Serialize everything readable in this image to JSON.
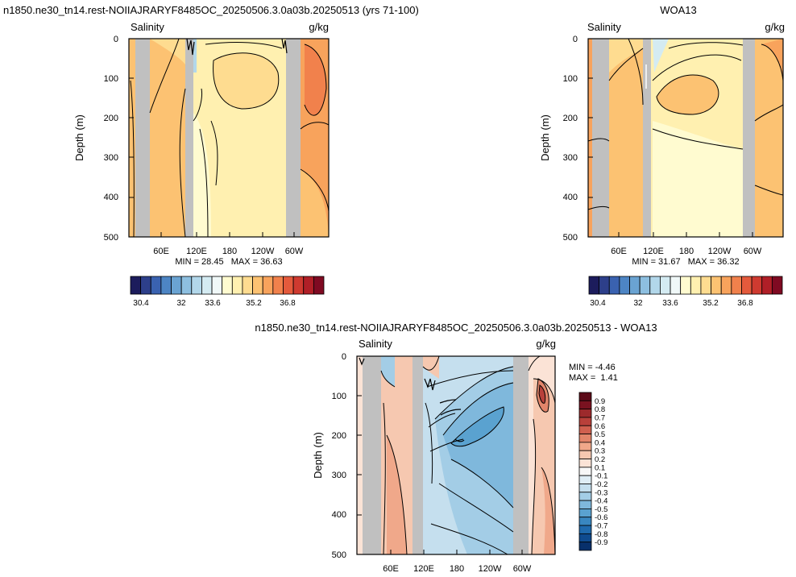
{
  "colors": {
    "land": "#c0c0c0",
    "contour": "#000000",
    "salinity_palette": [
      "#1c1c5c",
      "#2d3f8a",
      "#3a62b0",
      "#4d85c4",
      "#6aa3d2",
      "#8dbfe0",
      "#b2d7ea",
      "#d4ebf2",
      "#f0f8f8",
      "#fffbd0",
      "#fff0b0",
      "#fedc90",
      "#fcc272",
      "#f8a35c",
      "#f1814c",
      "#e45a3c",
      "#cf3a30",
      "#b01f27",
      "#7f0a22"
    ],
    "diff_palette": [
      "#08306b",
      "#0f4b8f",
      "#1f6aad",
      "#3987c0",
      "#5aa2d0",
      "#7fb8dc",
      "#a3cde6",
      "#c5dfee",
      "#dfedf5",
      "#f7f7f7",
      "#fbe3d6",
      "#f6c8b0",
      "#f0a88a",
      "#e2856a",
      "#d0604f",
      "#b8403a",
      "#9d2a2c",
      "#7a1220",
      "#5c0a18"
    ]
  },
  "chart_data": [
    {
      "type": "heatmap",
      "title": "n1850.ne30_tn14.rest-NOIIAJRARYF8485OC_20250506.3.0a03b.20250513 (yrs 71-100)",
      "left_label": "Salinity",
      "right_label": "g/kg",
      "ylabel": "Depth (m)",
      "ylim": [
        0,
        500
      ],
      "yticks": [
        "0",
        "100",
        "200",
        "300",
        "400",
        "500"
      ],
      "xticks": [
        "60E",
        "120E",
        "180",
        "120W",
        "60W"
      ],
      "min_max": "MIN = 28.45   MAX = 36.63",
      "colorbar_ticks": [
        "30.4",
        "32",
        "33.6",
        "35.2",
        "36.8"
      ]
    },
    {
      "type": "heatmap",
      "title": "WOA13",
      "left_label": "Salinity",
      "right_label": "g/kg",
      "ylabel": "Depth (m)",
      "ylim": [
        0,
        500
      ],
      "yticks": [
        "0",
        "100",
        "200",
        "300",
        "400",
        "500"
      ],
      "xticks": [
        "60E",
        "120E",
        "180",
        "120W",
        "60W"
      ],
      "min_max": "MIN = 31.67   MAX = 36.32",
      "colorbar_ticks": [
        "30.4",
        "32",
        "33.6",
        "35.2",
        "36.8"
      ]
    },
    {
      "type": "heatmap",
      "title": "n1850.ne30_tn14.rest-NOIIAJRARYF8485OC_20250506.3.0a03b.20250513 - WOA13",
      "left_label": "Salinity",
      "right_label": "g/kg",
      "ylabel": "Depth (m)",
      "ylim": [
        0,
        500
      ],
      "yticks": [
        "0",
        "100",
        "200",
        "300",
        "400",
        "500"
      ],
      "xticks": [
        "60E",
        "120E",
        "180",
        "120W",
        "60W"
      ],
      "min_label": "MIN = -4.46",
      "max_label": "MAX =  1.41",
      "colorbar_ticks": [
        "0.9",
        "0.8",
        "0.7",
        "0.6",
        "0.5",
        "0.4",
        "0.3",
        "0.2",
        "0.1",
        "-0.1",
        "-0.2",
        "-0.3",
        "-0.4",
        "-0.5",
        "-0.6",
        "-0.7",
        "-0.8",
        "-0.9"
      ]
    }
  ]
}
